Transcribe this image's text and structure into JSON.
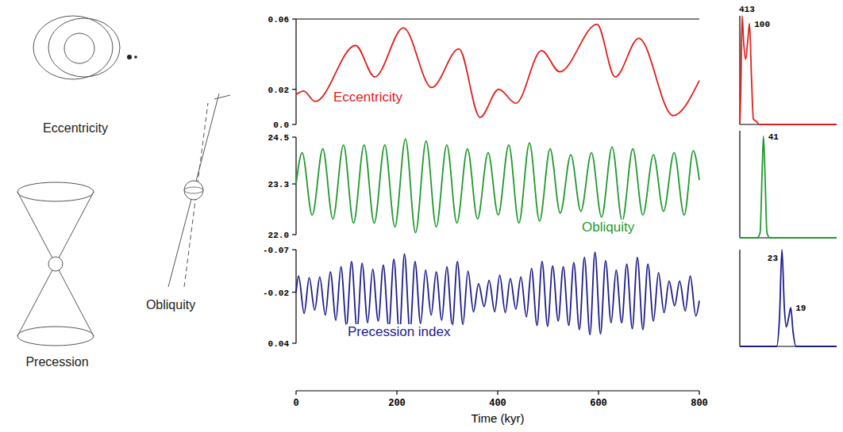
{
  "chart_data": [
    {
      "type": "line",
      "x": [
        0,
        15,
        38,
        118,
        156,
        213,
        269,
        323,
        365,
        402,
        436,
        487,
        523,
        597,
        633,
        680,
        748,
        800
      ],
      "series": [
        {
          "name": "Eccentricity",
          "color": "#e0201c",
          "values": [
            0.017,
            0.019,
            0.013,
            0.045,
            0.027,
            0.055,
            0.021,
            0.043,
            0.004,
            0.02,
            0.012,
            0.042,
            0.03,
            0.057,
            0.027,
            0.049,
            0.005,
            0.025
          ]
        }
      ],
      "xlim": [
        0,
        800
      ],
      "ylim": [
        0,
        0.06
      ],
      "yticks": [
        {
          "value": 0,
          "label": "0.0"
        },
        0.02,
        0.06
      ],
      "tick_labels": "y"
    },
    {
      "type": "line",
      "x": [
        0,
        12,
        32,
        53,
        73,
        94,
        114,
        135,
        155,
        176,
        196,
        217,
        237,
        258,
        278,
        299,
        319,
        340,
        360,
        381,
        401,
        422,
        442,
        463,
        483,
        504,
        524,
        545,
        565,
        586,
        606,
        627,
        647,
        668,
        688,
        709,
        729,
        750,
        770,
        788,
        800
      ],
      "series": [
        {
          "name": "Obliquity",
          "color": "#1f9a2e",
          "values": [
            23.3,
            24.1,
            22.5,
            24.2,
            22.4,
            24.3,
            22.3,
            24.3,
            22.3,
            24.3,
            22.2,
            24.45,
            22.05,
            24.4,
            22.2,
            24.3,
            22.3,
            24.2,
            22.4,
            24.1,
            22.5,
            24.3,
            22.3,
            24.35,
            22.35,
            24.2,
            22.55,
            24.05,
            22.6,
            24.1,
            22.45,
            24.25,
            22.35,
            24.2,
            22.5,
            24.05,
            22.6,
            24.1,
            22.5,
            24.15,
            23.4
          ]
        }
      ],
      "xlim": [
        0,
        800
      ],
      "ylim": [
        22,
        24.5
      ],
      "yticks": [
        {
          "value": 22,
          "label": "22.0"
        },
        23.3,
        24.5
      ],
      "tick_labels": "y"
    },
    {
      "type": "line",
      "x": [
        0,
        5,
        16,
        26,
        37,
        47,
        58,
        68,
        79,
        89,
        100,
        110,
        121,
        131,
        142,
        152,
        163,
        173,
        184,
        194,
        205,
        215,
        226,
        236,
        247,
        257,
        268,
        278,
        289,
        299,
        310,
        320,
        331,
        341,
        352,
        362,
        373,
        383,
        394,
        404,
        415,
        425,
        436,
        446,
        457,
        467,
        478,
        488,
        499,
        509,
        520,
        530,
        541,
        551,
        562,
        572,
        583,
        593,
        604,
        614,
        625,
        635,
        646,
        656,
        667,
        677,
        688,
        698,
        709,
        719,
        730,
        740,
        751,
        761,
        772,
        782,
        793,
        800
      ],
      "series": [
        {
          "name": "Precession index",
          "color": "#1c1c8c",
          "values": [
            -0.02,
            -0.039,
            0.005,
            -0.037,
            0.001,
            -0.038,
            0.007,
            -0.044,
            0.013,
            -0.05,
            0.019,
            -0.056,
            0.024,
            -0.054,
            0.016,
            -0.047,
            0.014,
            -0.052,
            0.022,
            -0.059,
            0.029,
            -0.065,
            0.026,
            -0.056,
            0.017,
            -0.046,
            0.007,
            -0.044,
            0.013,
            -0.05,
            0.019,
            -0.056,
            0.018,
            -0.045,
            0.003,
            -0.03,
            -0.003,
            -0.034,
            0.003,
            -0.04,
            0.004,
            -0.036,
            0.0,
            -0.038,
            0.009,
            -0.048,
            0.019,
            -0.056,
            0.02,
            -0.051,
            0.014,
            -0.05,
            0.019,
            -0.055,
            0.024,
            -0.061,
            0.03,
            -0.067,
            0.029,
            -0.057,
            0.016,
            -0.046,
            0.016,
            -0.053,
            0.023,
            -0.061,
            0.024,
            -0.053,
            0.014,
            -0.043,
            0.004,
            -0.033,
            -0.004,
            -0.033,
            0.002,
            -0.039,
            0.008,
            -0.01
          ]
        }
      ],
      "xlim": [
        0,
        800
      ],
      "ylim": [
        0.04,
        -0.07
      ],
      "yticks": [
        0.04,
        -0.02,
        -0.07
      ],
      "xticks": [
        0,
        200,
        400,
        600,
        800
      ],
      "x_label": "Time (kyr)"
    },
    {
      "type": "line",
      "x": [
        0,
        0.001,
        0.0024,
        0.004,
        0.006,
        0.008,
        0.01,
        0.012,
        0.014,
        0.017,
        0.02,
        0.03,
        0.1
      ],
      "series": [
        {
          "color": "#e0201c",
          "values": [
            0,
            0.3,
            1.0,
            0.75,
            0.6,
            0.75,
            0.93,
            0.45,
            0.05,
            0.03,
            0,
            0,
            0
          ]
        }
      ],
      "xlim": [
        0,
        0.1
      ],
      "ylim": [
        0,
        1
      ],
      "tick_labels": false,
      "annotations": [
        {
          "text": "413",
          "x": 0.0024,
          "y": 1.0
        },
        {
          "text": "100",
          "x": 0.01,
          "y": 0.93
        }
      ]
    },
    {
      "type": "line",
      "x": [
        0,
        0.018,
        0.021,
        0.023,
        0.0244,
        0.026,
        0.028,
        0.031,
        0.1
      ],
      "series": [
        {
          "color": "#1f9a2e",
          "values": [
            0,
            0,
            0.05,
            0.6,
            0.95,
            0.6,
            0.05,
            0,
            0
          ]
        }
      ],
      "xlim": [
        0,
        0.1
      ],
      "ylim": [
        0,
        1
      ],
      "tick_labels": false,
      "annotations": [
        {
          "text": "41",
          "x": 0.0244,
          "y": 0.95
        }
      ]
    },
    {
      "type": "line",
      "x": [
        0,
        0.038,
        0.041,
        0.0435,
        0.046,
        0.048,
        0.0505,
        0.0526,
        0.055,
        0.058,
        0.1
      ],
      "series": [
        {
          "color": "#1c1c8c",
          "values": [
            0,
            0,
            0.3,
            1.0,
            0.4,
            0.2,
            0.3,
            0.4,
            0.15,
            0,
            0
          ]
        }
      ],
      "xlim": [
        0,
        0.1
      ],
      "ylim": [
        0,
        1
      ],
      "tick_labels": false,
      "annotations": [
        {
          "text": "23",
          "x": 0.0435,
          "y": 1.0
        },
        {
          "text": "19",
          "x": 0.0526,
          "y": 0.4
        }
      ]
    }
  ],
  "diagrams": [
    {
      "label": "Eccentricity"
    },
    {
      "label": "Precession"
    },
    {
      "label": "Obliquity"
    }
  ]
}
